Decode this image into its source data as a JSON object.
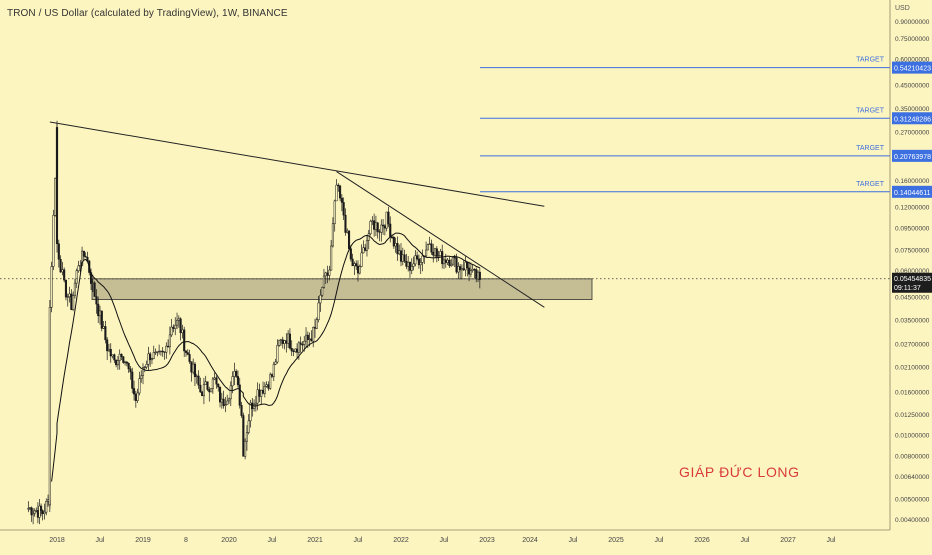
{
  "header": {
    "title": "TRON / US Dollar (calculated by TradingView), 1W, BINANCE",
    "currency": "USD"
  },
  "watermark": "GIÁP ĐỨC LONG",
  "colors": {
    "background": "#fdf5c0",
    "target_line": "#3c6fe0",
    "price_badge": "#3c6fe0",
    "current_badge": "#1d1d1d",
    "candles": "#1a1a1a",
    "support_zone": "#aca581",
    "watermark": "#d93a3a"
  },
  "chart_data": {
    "type": "candlestick",
    "symbol": "TRX/USD",
    "interval": "1W",
    "exchange": "BINANCE",
    "y_scale": "log",
    "y_ticks": [
      "0.90000000",
      "0.75000000",
      "0.60000000",
      "0.45000000",
      "0.35000000",
      "0.27000000",
      "0.16000000",
      "0.12000000",
      "0.09500000",
      "0.07500000",
      "0.06000000",
      "0.04500000",
      "0.03500000",
      "0.02700000",
      "0.02100000",
      "0.01600000",
      "0.01250000",
      "0.01000000",
      "0.00800000",
      "0.00640000",
      "0.00500000",
      "0.00400000"
    ],
    "x_ticks": [
      "2018",
      "Jul",
      "2019",
      "8",
      "2020",
      "Jul",
      "2021",
      "Jul",
      "2022",
      "Jul",
      "2023",
      "2024",
      "Jul",
      "2025",
      "Jul",
      "2026",
      "Jul",
      "2027",
      "Jul"
    ],
    "current_price": "0.05454835",
    "countdown": "09:11:37",
    "targets": [
      {
        "label": "TARGET",
        "price": "0.54210423"
      },
      {
        "label": "TARGET",
        "price": "0.31248286"
      },
      {
        "label": "TARGET",
        "price": "0.20763978"
      },
      {
        "label": "TARGET",
        "price": "0.14044611"
      }
    ],
    "support_zone": {
      "low": 0.0435,
      "high": 0.0545
    },
    "trendlines": [
      {
        "name": "long-term resistance",
        "from": [
          "2017-12",
          0.3
        ],
        "to": [
          "2023-09",
          0.12
        ]
      },
      {
        "name": "short-term resistance",
        "from": [
          "2021-04",
          0.175
        ],
        "to": [
          "2023-09",
          0.04
        ]
      }
    ],
    "moving_average": true,
    "price_path": [
      [
        "2017-09",
        0.0045
      ],
      [
        "2017-11",
        0.0043
      ],
      [
        "2017-12",
        0.005
      ],
      [
        "2017-12",
        0.04
      ],
      [
        "2018-01",
        0.28
      ],
      [
        "2018-01",
        0.08
      ],
      [
        "2018-02",
        0.05
      ],
      [
        "2018-03",
        0.041
      ],
      [
        "2018-04",
        0.065
      ],
      [
        "2018-05",
        0.072
      ],
      [
        "2018-06",
        0.05
      ],
      [
        "2018-07",
        0.036
      ],
      [
        "2018-08",
        0.026
      ],
      [
        "2018-09",
        0.022
      ],
      [
        "2018-10",
        0.025
      ],
      [
        "2018-11",
        0.02
      ],
      [
        "2018-12",
        0.0145
      ],
      [
        "2019-01",
        0.021
      ],
      [
        "2019-02",
        0.024
      ],
      [
        "2019-03",
        0.023
      ],
      [
        "2019-04",
        0.024
      ],
      [
        "2019-05",
        0.033
      ],
      [
        "2019-06",
        0.034
      ],
      [
        "2019-07",
        0.025
      ],
      [
        "2019-08",
        0.02
      ],
      [
        "2019-09",
        0.016
      ],
      [
        "2019-10",
        0.017
      ],
      [
        "2019-11",
        0.018
      ],
      [
        "2019-12",
        0.014
      ],
      [
        "2020-01",
        0.016
      ],
      [
        "2020-02",
        0.02
      ],
      [
        "2020-03",
        0.011
      ],
      [
        "2020-03",
        0.0085
      ],
      [
        "2020-04",
        0.0135
      ],
      [
        "2020-05",
        0.016
      ],
      [
        "2020-06",
        0.017
      ],
      [
        "2020-07",
        0.019
      ],
      [
        "2020-08",
        0.027
      ],
      [
        "2020-09",
        0.029
      ],
      [
        "2020-10",
        0.026
      ],
      [
        "2020-11",
        0.027
      ],
      [
        "2020-12",
        0.028
      ],
      [
        "2021-01",
        0.031
      ],
      [
        "2021-02",
        0.05
      ],
      [
        "2021-03",
        0.06
      ],
      [
        "2021-04",
        0.15
      ],
      [
        "2021-05",
        0.11
      ],
      [
        "2021-06",
        0.066
      ],
      [
        "2021-07",
        0.058
      ],
      [
        "2021-08",
        0.08
      ],
      [
        "2021-09",
        0.1
      ],
      [
        "2021-10",
        0.095
      ],
      [
        "2021-11",
        0.105
      ],
      [
        "2021-12",
        0.082
      ],
      [
        "2022-01",
        0.068
      ],
      [
        "2022-02",
        0.062
      ],
      [
        "2022-03",
        0.066
      ],
      [
        "2022-04",
        0.07
      ],
      [
        "2022-05",
        0.082
      ],
      [
        "2022-06",
        0.07
      ],
      [
        "2022-07",
        0.068
      ],
      [
        "2022-08",
        0.068
      ],
      [
        "2022-09",
        0.062
      ],
      [
        "2022-10",
        0.063
      ],
      [
        "2022-11",
        0.057
      ],
      [
        "2022-12",
        0.054
      ]
    ]
  }
}
